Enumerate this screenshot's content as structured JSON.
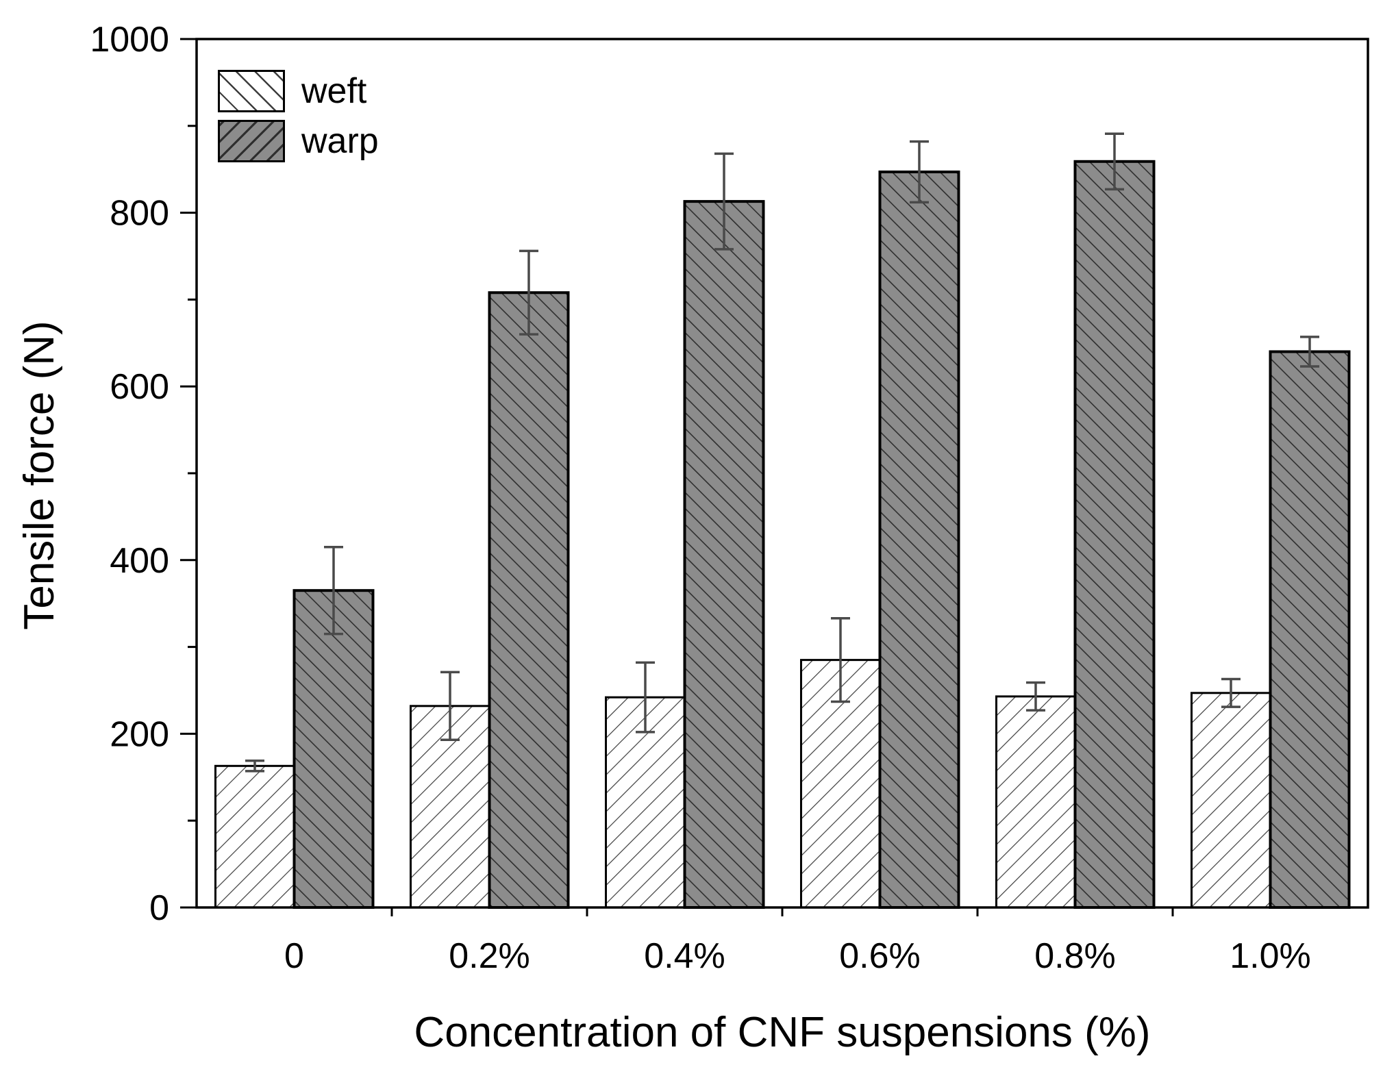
{
  "chart_data": {
    "type": "bar",
    "title": "",
    "xlabel": "Concentration of CNF suspensions (%)",
    "ylabel": "Tensile force (N)",
    "categories": [
      "0",
      "0.2%",
      "0.4%",
      "0.6%",
      "0.8%",
      "1.0%"
    ],
    "series": [
      {
        "name": "weft",
        "values": [
          163,
          232,
          242,
          285,
          243,
          247
        ],
        "errors": [
          6,
          39,
          40,
          48,
          16,
          16
        ],
        "fill": "#ffffff",
        "hatch": "/"
      },
      {
        "name": "warp",
        "values": [
          365,
          708,
          813,
          847,
          859,
          640
        ],
        "errors": [
          50,
          48,
          55,
          35,
          32,
          17
        ],
        "fill": "#8c8c8c",
        "hatch": "\\"
      }
    ],
    "ylim": [
      0,
      1000
    ],
    "y_major_ticks": [
      0,
      200,
      400,
      600,
      800,
      1000
    ],
    "y_minor_step": 100,
    "legend_position": "top-left",
    "grid": false
  },
  "style": {
    "background": "#ffffff",
    "axis_color": "#000000",
    "bar_outline_color": "#000000",
    "error_bar_color": "#4a4a4a",
    "weft_hatch_color": "#3d3d3d",
    "warp_hatch_color": "#2e2e2e",
    "text_color": "#000000"
  }
}
